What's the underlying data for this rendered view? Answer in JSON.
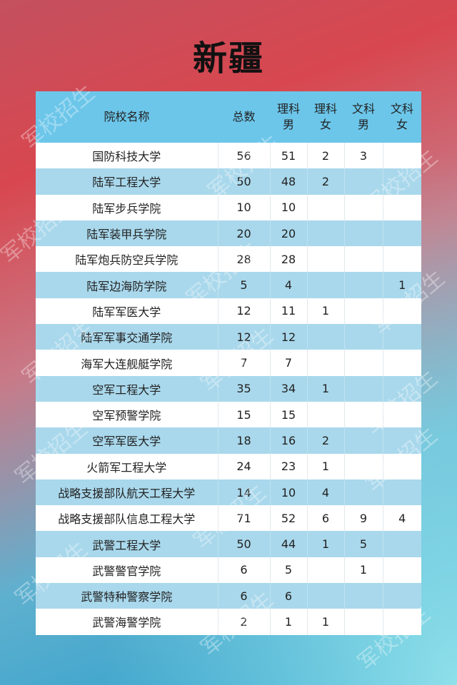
{
  "title": "新疆",
  "watermark": "军校招生",
  "colors": {
    "header": "#6cc6ea",
    "alt_row": "#a9d8ec",
    "row": "#ffffff"
  },
  "table": {
    "headers": [
      "院校名称",
      "总数",
      "理科男",
      "理科女",
      "文科男",
      "文科女"
    ],
    "header_lines": [
      [
        "院校名称"
      ],
      [
        "总数"
      ],
      [
        "理科",
        "男"
      ],
      [
        "理科",
        "女"
      ],
      [
        "文科",
        "男"
      ],
      [
        "文科",
        "女"
      ]
    ],
    "rows": [
      [
        "国防科技大学",
        "56",
        "51",
        "2",
        "3",
        ""
      ],
      [
        "陆军工程大学",
        "50",
        "48",
        "2",
        "",
        ""
      ],
      [
        "陆军步兵学院",
        "10",
        "10",
        "",
        "",
        ""
      ],
      [
        "陆军装甲兵学院",
        "20",
        "20",
        "",
        "",
        ""
      ],
      [
        "陆军炮兵防空兵学院",
        "28",
        "28",
        "",
        "",
        ""
      ],
      [
        "陆军边海防学院",
        "5",
        "4",
        "",
        "",
        "1"
      ],
      [
        "陆军军医大学",
        "12",
        "11",
        "1",
        "",
        ""
      ],
      [
        "陆军军事交通学院",
        "12",
        "12",
        "",
        "",
        ""
      ],
      [
        "海军大连舰艇学院",
        "7",
        "7",
        "",
        "",
        ""
      ],
      [
        "空军工程大学",
        "35",
        "34",
        "1",
        "",
        ""
      ],
      [
        "空军预警学院",
        "15",
        "15",
        "",
        "",
        ""
      ],
      [
        "空军军医大学",
        "18",
        "16",
        "2",
        "",
        ""
      ],
      [
        "火箭军工程大学",
        "24",
        "23",
        "1",
        "",
        ""
      ],
      [
        "战略支援部队航天工程大学",
        "14",
        "10",
        "4",
        "",
        ""
      ],
      [
        "战略支援部队信息工程大学",
        "71",
        "52",
        "6",
        "9",
        "4"
      ],
      [
        "武警工程大学",
        "50",
        "44",
        "1",
        "5",
        ""
      ],
      [
        "武警警官学院",
        "6",
        "5",
        "",
        "1",
        ""
      ],
      [
        "武警特种警察学院",
        "6",
        "6",
        "",
        "",
        ""
      ],
      [
        "武警海警学院",
        "2",
        "1",
        "1",
        "",
        ""
      ]
    ]
  }
}
